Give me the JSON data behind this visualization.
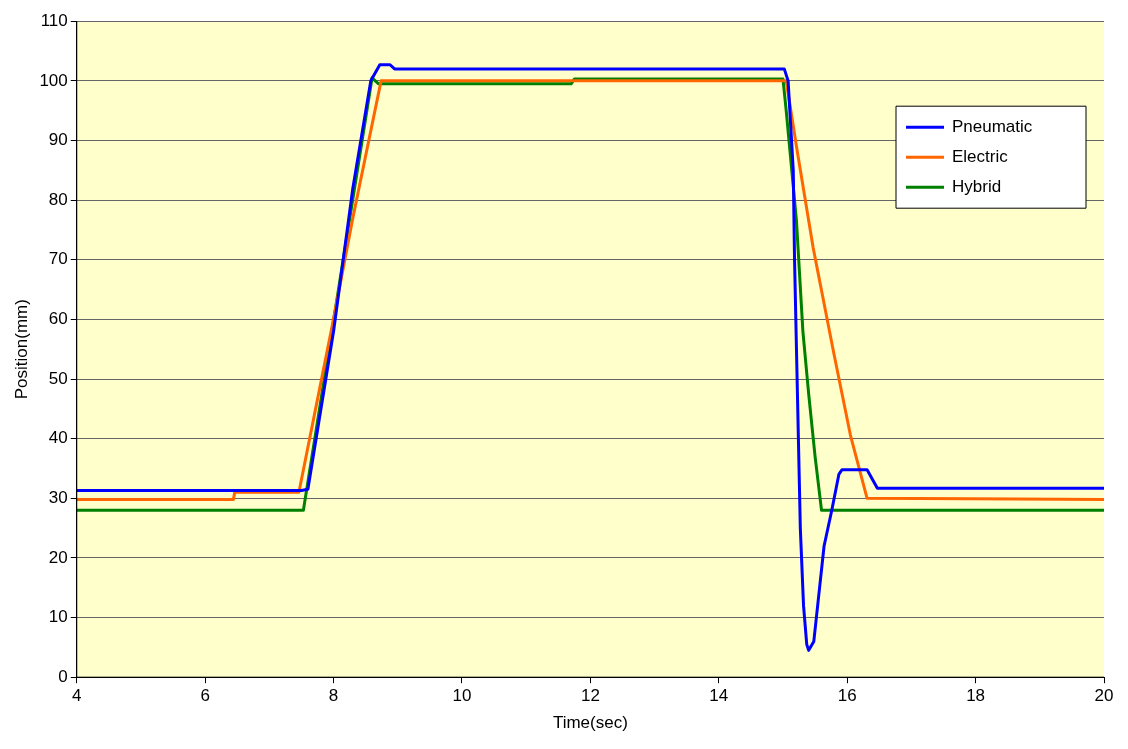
{
  "chart_data": {
    "type": "line",
    "xlabel": "Time(sec)",
    "ylabel": "Position(mm)",
    "xlim": [
      4,
      20
    ],
    "xticks": [
      4,
      6,
      8,
      10,
      12,
      14,
      16,
      18,
      20
    ],
    "ylim": [
      0,
      110
    ],
    "yticks": [
      0,
      10,
      20,
      30,
      40,
      50,
      60,
      70,
      80,
      90,
      100,
      110
    ],
    "grid": "y",
    "legend": "top right",
    "marker": "none",
    "line_style": "solid",
    "series": [
      {
        "name": "Pneumatic",
        "color": "#0000ff",
        "x": [
          4,
          7.5,
          7.6,
          8.0,
          8.3,
          8.58,
          8.72,
          8.88,
          8.95,
          14.95,
          15.02,
          15.08,
          15.16,
          15.18,
          15.21,
          15.24,
          15.27,
          15.32,
          15.37,
          15.4,
          15.48,
          15.56,
          15.64,
          15.76,
          15.87,
          15.92,
          16.31,
          16.47,
          20
        ],
        "values": [
          31.3,
          31.3,
          31.5,
          58,
          82,
          100,
          102.7,
          102.7,
          102,
          102,
          102,
          100,
          85,
          70,
          55,
          40,
          25,
          12,
          5.5,
          4.5,
          6,
          14,
          22,
          28,
          34,
          34.8,
          34.8,
          31.7,
          31.7
        ]
      },
      {
        "name": "Electric",
        "color": "#ff6600",
        "x": [
          4,
          6.44,
          6.46,
          7.46,
          7.98,
          8.3,
          8.74,
          15.05,
          15.21,
          15.47,
          15.79,
          16.05,
          16.31,
          20
        ],
        "values": [
          29.8,
          29.8,
          31,
          31,
          59,
          77,
          100,
          100,
          89,
          72,
          54.4,
          40.6,
          30,
          29.8
        ]
      },
      {
        "name": "Hybrid",
        "color": "#008000",
        "x": [
          4,
          7.53,
          8.6,
          8.7,
          11.7,
          11.75,
          15.0,
          15.05,
          15.21,
          15.31,
          15.4,
          15.5,
          15.6,
          15.62,
          20
        ],
        "values": [
          28,
          28,
          100.5,
          99.5,
          99.5,
          100.3,
          100.3,
          95,
          76.5,
          58,
          47.5,
          37,
          28,
          28,
          28
        ]
      }
    ]
  }
}
